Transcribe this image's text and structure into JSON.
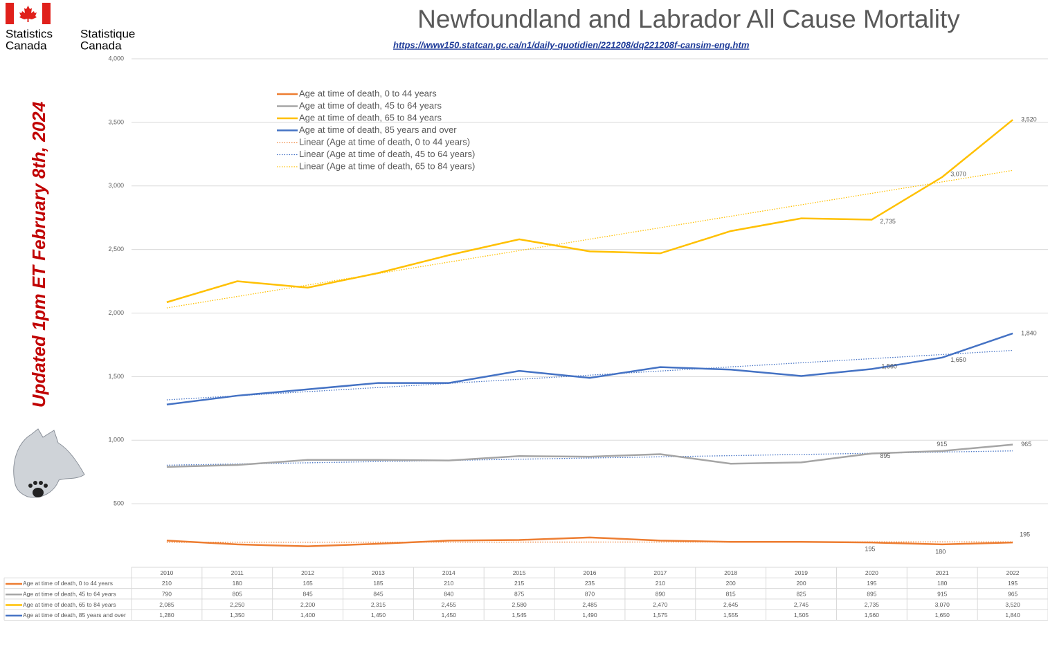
{
  "header": {
    "agency_en": [
      "Statistics",
      "Canada"
    ],
    "agency_fr": [
      "Statistique",
      "Canada"
    ]
  },
  "chart_data": {
    "type": "line",
    "title": "Newfoundland and Labrador All Cause Mortality",
    "source": "https://www150.statcan.gc.ca/n1/daily-quotidien/221208/dq221208f-cansim-eng.htm",
    "annotation": "Updated 1pm ET February 8th, 2024",
    "categories": [
      "2010",
      "2011",
      "2012",
      "2013",
      "2014",
      "2015",
      "2016",
      "2017",
      "2018",
      "2019",
      "2020",
      "2021",
      "2022"
    ],
    "ylim": [
      0,
      4000
    ],
    "yticks": [
      500,
      {
        "value": 1000,
        "label": "1,000"
      },
      {
        "value": 1500,
        "label": "1,500"
      },
      {
        "value": 2000,
        "label": "2,000"
      },
      {
        "value": 2500,
        "label": "2,500"
      },
      {
        "value": 3000,
        "label": "3,000"
      },
      {
        "value": 3500,
        "label": "3,500"
      },
      {
        "value": 4000,
        "label": "4,000"
      }
    ],
    "grid": true,
    "series": [
      {
        "name": "Age at time of death, 0 to 44 years",
        "color": "#ed7d31",
        "values": [
          210,
          180,
          165,
          185,
          210,
          215,
          235,
          210,
          200,
          200,
          195,
          180,
          195
        ],
        "trendline": {
          "name": "Linear (Age at time of death, 0 to 44 years)",
          "color": "#ed7d31"
        }
      },
      {
        "name": "Age at time of death, 45 to 64 years",
        "color": "#a5a5a5",
        "values": [
          790,
          805,
          845,
          845,
          840,
          875,
          870,
          890,
          815,
          825,
          895,
          915,
          965
        ],
        "trendline": {
          "name": "Linear (Age at time of death, 45 to 64 years)",
          "color": "#4472c4"
        }
      },
      {
        "name": "Age at time of death, 65 to 84 years",
        "color": "#ffc000",
        "values": [
          2085,
          2250,
          2200,
          2315,
          2455,
          2580,
          2485,
          2470,
          2645,
          2745,
          2735,
          3070,
          3520
        ],
        "value_labels": [
          "2,085",
          "2,250",
          "2,200",
          "2,315",
          "2,455",
          "2,580",
          "2,485",
          "2,470",
          "2,645",
          "2,745",
          "2,735",
          "3,070",
          "3,520"
        ],
        "trendline": {
          "name": "Linear (Age at time of death, 65 to 84 years)",
          "color": "#ffc000"
        }
      },
      {
        "name": "Age at time of death, 85 years and over",
        "color": "#4472c4",
        "values": [
          1280,
          1350,
          1400,
          1450,
          1450,
          1545,
          1490,
          1575,
          1555,
          1505,
          1560,
          1650,
          1840
        ],
        "value_labels": [
          "1,280",
          "1,350",
          "1,400",
          "1,450",
          "1,450",
          "1,545",
          "1,490",
          "1,575",
          "1,555",
          "1,505",
          "1,560",
          "1,650",
          "1,840"
        ],
        "trendline": {
          "color": "#4472c4"
        }
      }
    ]
  }
}
